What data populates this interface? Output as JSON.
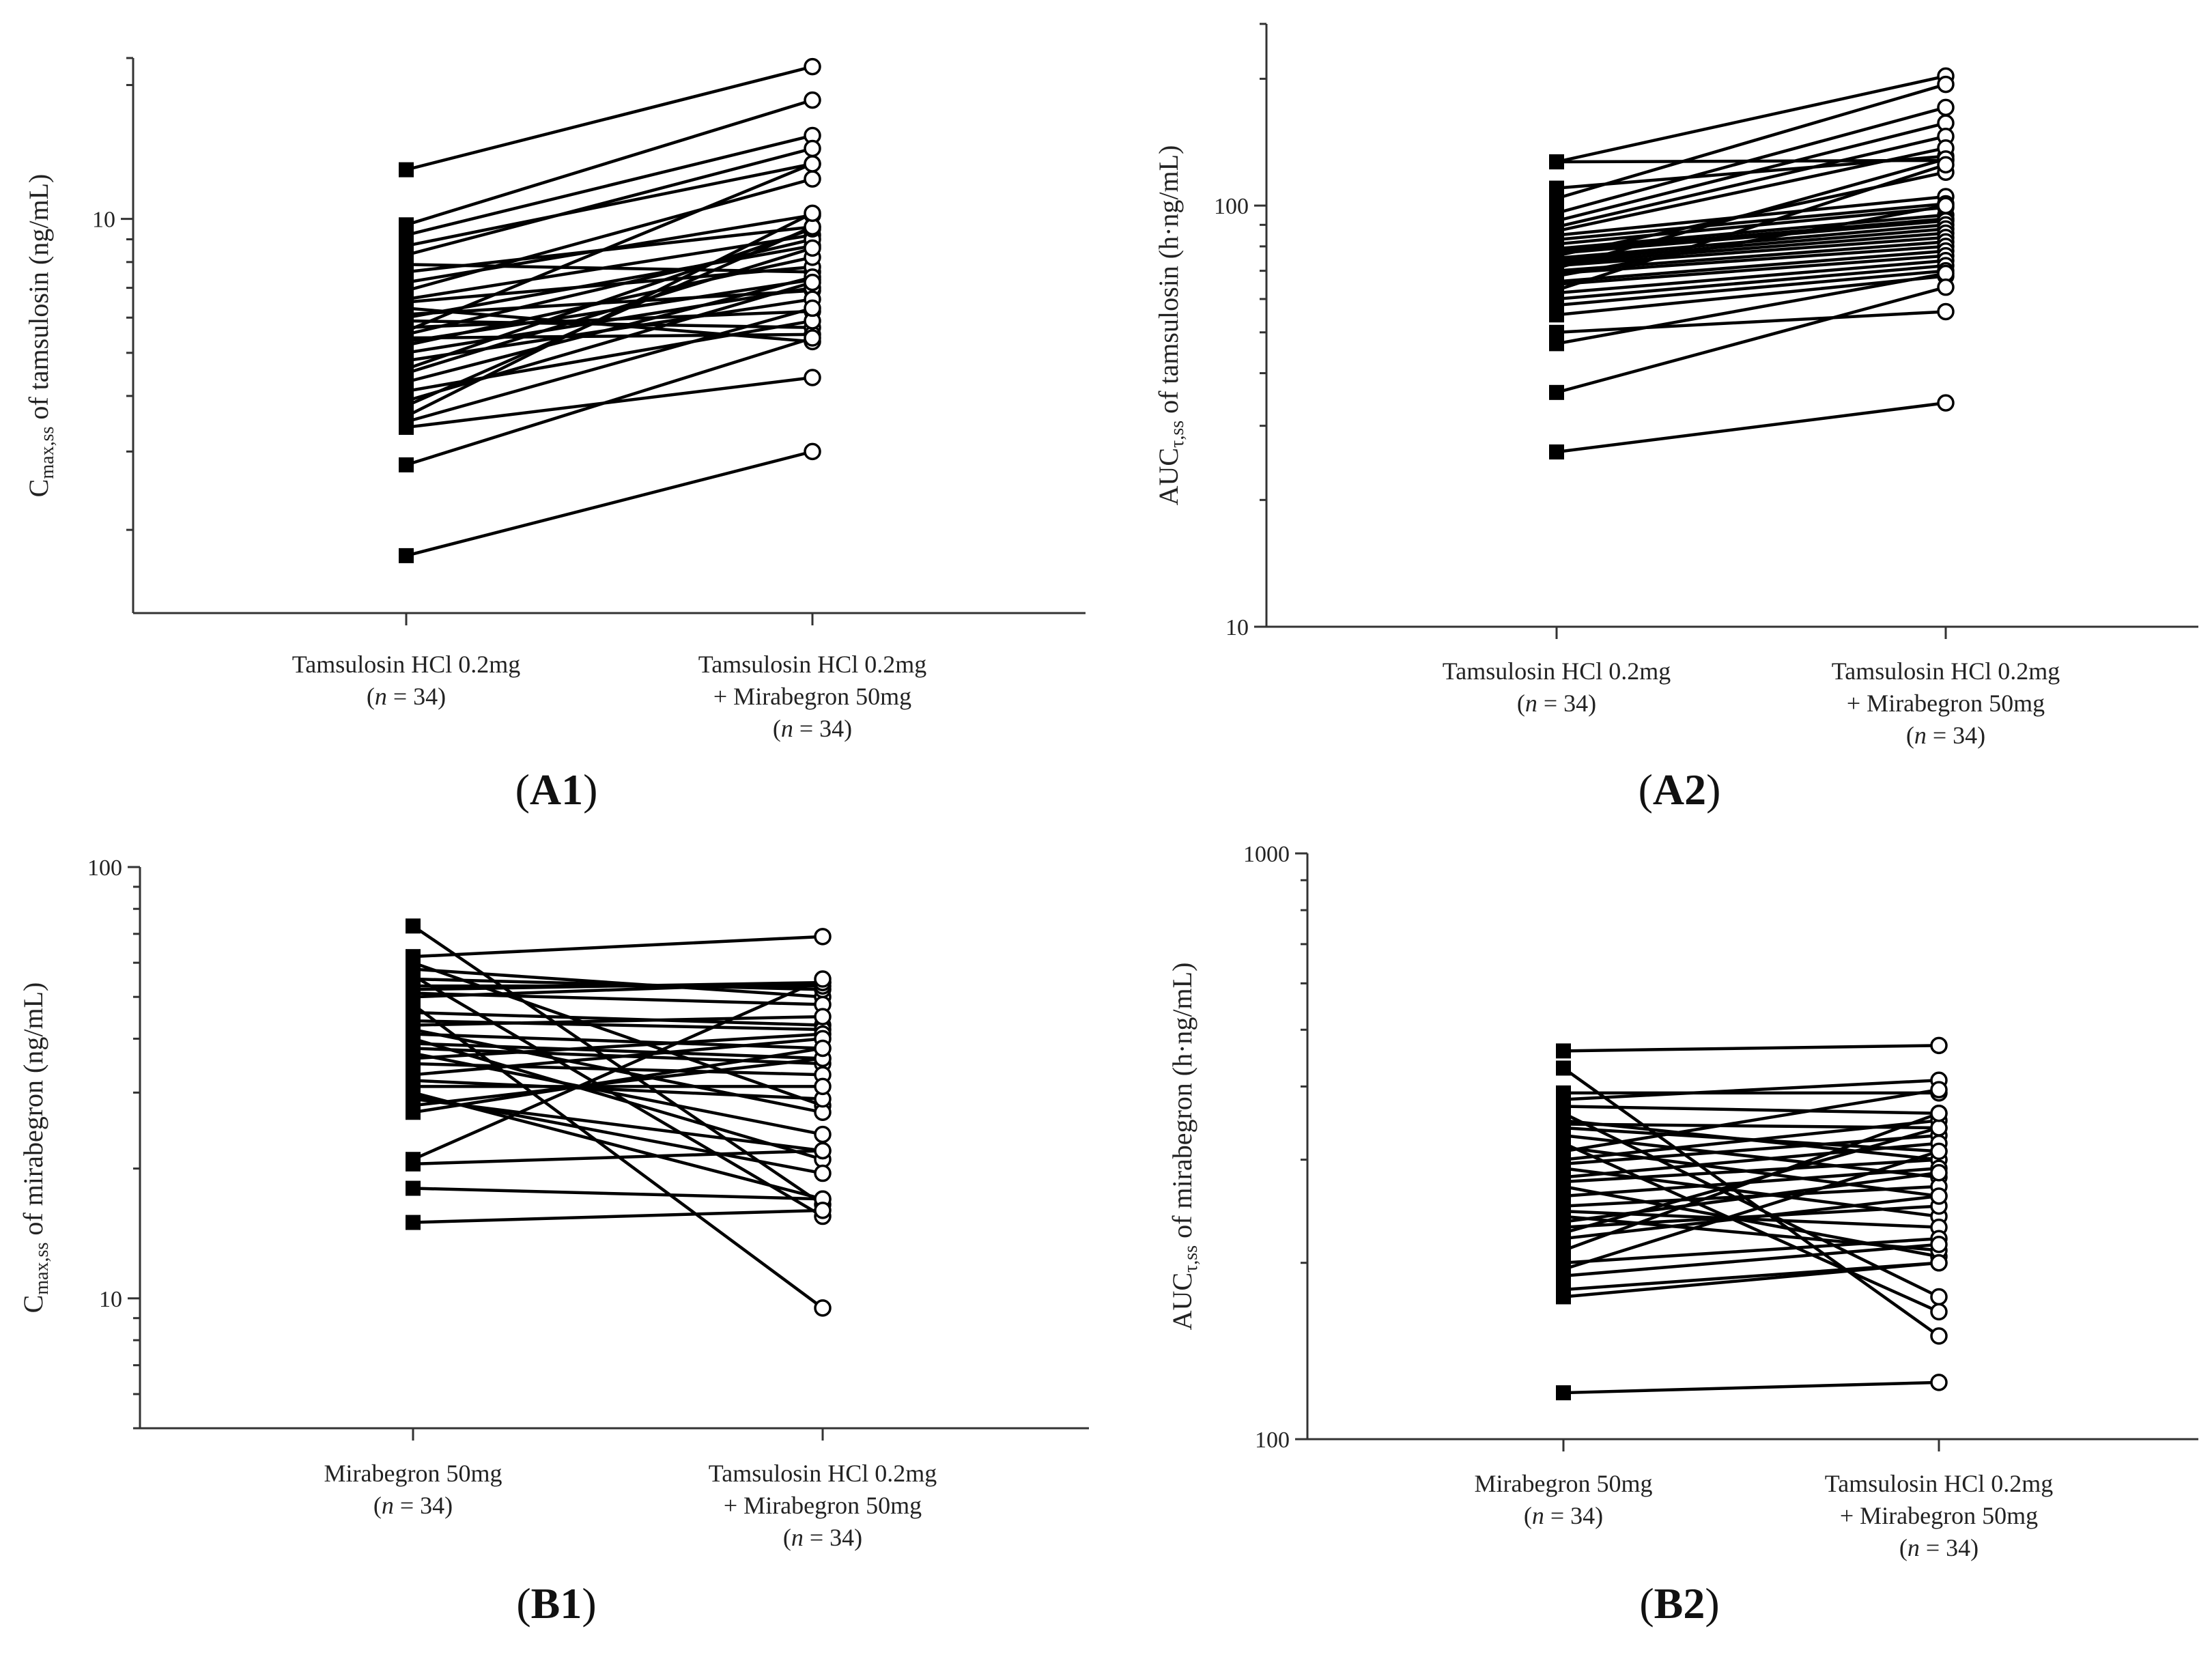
{
  "chart_data": [
    {
      "id": "A1",
      "panel_label": "A1",
      "type": "paired-scatter",
      "y_scale": "log",
      "ylim": [
        1.3,
        23
      ],
      "y_ticks": [
        "10"
      ],
      "ylabel": {
        "main": "C",
        "sub": "max,ss",
        "rest": " of tamsulosin (ng/mL)"
      },
      "categories": [
        {
          "lines": [
            {
              "text": "Tamsulosin HCl 0.2mg"
            },
            {
              "pre": "(",
              "n": "n",
              "post": " = 34)"
            }
          ]
        },
        {
          "lines": [
            {
              "text": "Tamsulosin HCl 0.2mg"
            },
            {
              "text": "+ Mirabegron 50mg"
            },
            {
              "pre": "(",
              "n": "n",
              "post": " = 34)"
            }
          ]
        }
      ],
      "before": [
        12.9,
        9.7,
        9.2,
        8.7,
        8.3,
        7.9,
        7.6,
        7.2,
        6.9,
        6.6,
        6.5,
        6.3,
        6.1,
        6.0,
        5.9,
        5.7,
        5.6,
        5.5,
        5.4,
        5.3,
        5.2,
        5.0,
        4.8,
        4.6,
        4.5,
        4.3,
        4.1,
        3.9,
        3.8,
        3.6,
        3.5,
        3.4,
        2.8,
        1.75
      ],
      "after": [
        22.0,
        18.5,
        15.4,
        13.3,
        14.4,
        7.6,
        9.6,
        10.2,
        12.3,
        9.2,
        7.8,
        5.3,
        6.9,
        8.7,
        5.7,
        6.2,
        13.3,
        9.0,
        5.5,
        7.3,
        8.2,
        7.0,
        6.6,
        9.5,
        8.6,
        7.4,
        5.9,
        7.2,
        9.6,
        10.3,
        6.3,
        4.4,
        5.4,
        3.0
      ]
    },
    {
      "id": "A2",
      "panel_label": "A2",
      "type": "paired-scatter",
      "y_scale": "log",
      "ylim": [
        10,
        270
      ],
      "y_ticks": [
        "10",
        "100"
      ],
      "ylabel": {
        "main": "AUC",
        "sub": "τ,ss",
        "rest": " of tamsulosin (h·ng/mL)"
      },
      "categories": [
        {
          "lines": [
            {
              "text": "Tamsulosin HCl 0.2mg"
            },
            {
              "pre": "(",
              "n": "n",
              "post": " = 34)"
            }
          ]
        },
        {
          "lines": [
            {
              "text": "Tamsulosin HCl 0.2mg"
            },
            {
              "text": "+ Mirabegron 50mg"
            },
            {
              "pre": "(",
              "n": "n",
              "post": " = 34)"
            }
          ]
        }
      ],
      "before": [
        127,
        127,
        110,
        104,
        96,
        92,
        89,
        87,
        85,
        83,
        81,
        79,
        78,
        77,
        76,
        75,
        74,
        73,
        72,
        71,
        70,
        69,
        68,
        66,
        65,
        63,
        62,
        60,
        58,
        55,
        50,
        47,
        36,
        26
      ],
      "after": [
        203,
        128,
        131,
        194,
        171,
        157,
        146,
        137,
        105,
        101,
        99,
        95,
        93,
        92,
        120,
        90,
        88,
        86,
        84,
        129,
        82,
        80,
        100,
        78,
        76,
        125,
        74,
        72,
        70,
        68,
        56,
        69,
        64,
        34
      ]
    },
    {
      "id": "B1",
      "panel_label": "B1",
      "type": "paired-scatter",
      "y_scale": "log",
      "ylim": [
        5,
        100
      ],
      "y_ticks": [
        "10",
        "100"
      ],
      "ylabel": {
        "main": "C",
        "sub": "max,ss",
        "rest": " of mirabegron (ng/mL)"
      },
      "categories": [
        {
          "lines": [
            {
              "text": "Mirabegron 50mg"
            },
            {
              "pre": "(",
              "n": "n",
              "post": " = 34)"
            }
          ]
        },
        {
          "lines": [
            {
              "text": "Tamsulosin HCl 0.2mg"
            },
            {
              "text": "+ Mirabegron 50mg"
            },
            {
              "pre": "(",
              "n": "n",
              "post": " = 34)"
            }
          ]
        }
      ],
      "before": [
        73,
        62,
        60,
        58,
        56,
        55,
        53,
        52,
        51,
        50,
        48,
        46,
        44,
        43,
        42,
        41,
        40,
        39,
        38,
        37,
        36,
        35,
        33,
        32,
        31,
        30,
        29.5,
        29,
        28,
        27,
        21,
        20.5,
        18,
        15
      ],
      "after": [
        16.5,
        69,
        28,
        50,
        15.5,
        52,
        53,
        54,
        48,
        54,
        9.5,
        43,
        42,
        45,
        27,
        38,
        21,
        36,
        35,
        24,
        41,
        33,
        40,
        29,
        31,
        17,
        19.5,
        22,
        36,
        38,
        55,
        22,
        17,
        16
      ]
    },
    {
      "id": "B2",
      "panel_label": "B2",
      "type": "paired-scatter",
      "y_scale": "log",
      "ylim": [
        100,
        1000
      ],
      "y_ticks": [
        "100",
        "1000"
      ],
      "ylabel": {
        "main": "AUC",
        "sub": "τ,ss",
        "rest": " of mirabegron (h·ng/mL)"
      },
      "categories": [
        {
          "lines": [
            {
              "text": "Mirabegron 50mg"
            },
            {
              "pre": "(",
              "n": "n",
              "post": " = 34)"
            }
          ]
        },
        {
          "lines": [
            {
              "text": "Tamsulosin HCl 0.2mg"
            },
            {
              "text": "+ Mirabegron 50mg"
            },
            {
              "pre": "(",
              "n": "n",
              "post": " = 34)"
            }
          ]
        }
      ],
      "before": [
        460,
        430,
        390,
        380,
        370,
        360,
        350,
        345,
        340,
        330,
        320,
        315,
        310,
        300,
        295,
        290,
        280,
        275,
        270,
        260,
        250,
        245,
        240,
        235,
        230,
        225,
        220,
        210,
        200,
        195,
        190,
        180,
        175,
        120
      ],
      "after": [
        470,
        150,
        390,
        410,
        360,
        175,
        300,
        340,
        310,
        280,
        165,
        260,
        395,
        350,
        330,
        240,
        320,
        300,
        205,
        290,
        270,
        230,
        210,
        285,
        250,
        340,
        260,
        360,
        220,
        310,
        215,
        200,
        200,
        125
      ]
    }
  ]
}
